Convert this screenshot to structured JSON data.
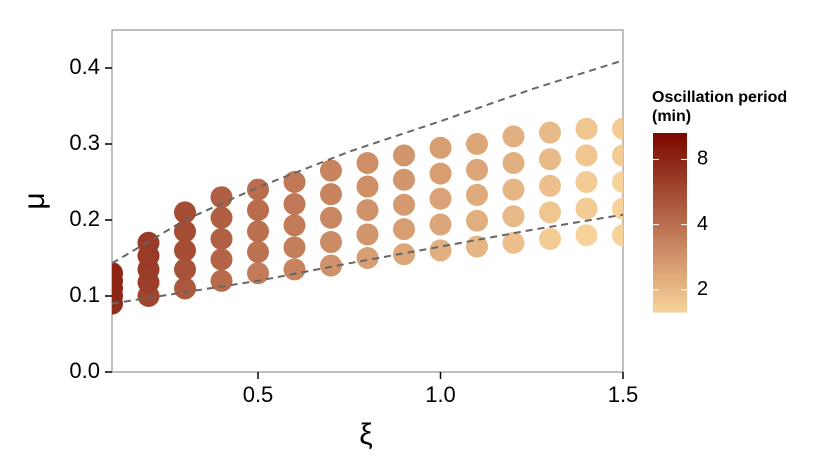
{
  "chart_data": {
    "type": "scatter",
    "x_label": "ξ",
    "y_label": "μ",
    "legend_title": "Oscillation period (min)",
    "xlim": [
      0.1,
      1.5
    ],
    "xticks": [
      0.5,
      {
        "value": 1,
        "label": "1.0"
      },
      1.5
    ],
    "ylim": [
      0,
      0.45
    ],
    "yticks": [
      {
        "value": 0,
        "label": "0.0"
      },
      0.1,
      0.2,
      0.3,
      0.4
    ],
    "color_lim": [
      1.58,
      10.6
    ],
    "color_log": true,
    "colors": [
      "#f8d39b",
      "#7a0800"
    ],
    "color_ticks": [
      2,
      4,
      8
    ],
    "x": [
      0.1,
      0.1,
      0.1,
      0.1,
      0.1,
      0.2,
      0.2,
      0.2,
      0.2,
      0.2,
      0.3,
      0.3,
      0.3,
      0.3,
      0.3,
      0.4,
      0.4,
      0.4,
      0.4,
      0.4,
      0.5,
      0.5,
      0.5,
      0.5,
      0.5,
      0.6,
      0.6,
      0.6,
      0.6,
      0.6,
      0.7,
      0.7,
      0.7,
      0.7,
      0.7,
      0.8,
      0.8,
      0.8,
      0.8,
      0.8,
      0.9,
      0.9,
      0.9,
      0.9,
      0.9,
      1.0,
      1.0,
      1.0,
      1.0,
      1.0,
      1.1,
      1.1,
      1.1,
      1.1,
      1.1,
      1.2,
      1.2,
      1.2,
      1.2,
      1.2,
      1.3,
      1.3,
      1.3,
      1.3,
      1.3,
      1.4,
      1.4,
      1.4,
      1.4,
      1.4,
      1.5,
      1.5,
      1.5,
      1.5,
      1.5
    ],
    "y": [
      0.09,
      0.1,
      0.11,
      0.12,
      0.13,
      0.1,
      0.118,
      0.135,
      0.153,
      0.17,
      0.11,
      0.135,
      0.16,
      0.185,
      0.21,
      0.12,
      0.148,
      0.175,
      0.203,
      0.23,
      0.13,
      0.158,
      0.185,
      0.213,
      0.24,
      0.135,
      0.164,
      0.193,
      0.221,
      0.25,
      0.14,
      0.171,
      0.203,
      0.234,
      0.265,
      0.15,
      0.181,
      0.213,
      0.244,
      0.275,
      0.155,
      0.188,
      0.22,
      0.253,
      0.285,
      0.16,
      0.194,
      0.228,
      0.261,
      0.295,
      0.165,
      0.199,
      0.233,
      0.266,
      0.3,
      0.17,
      0.205,
      0.24,
      0.275,
      0.31,
      0.175,
      0.21,
      0.245,
      0.28,
      0.315,
      0.18,
      0.215,
      0.25,
      0.285,
      0.32,
      0.18,
      0.215,
      0.25,
      0.285,
      0.32
    ],
    "period": [
      7.5,
      7.8,
      8,
      8,
      8,
      6,
      6.3,
      6.5,
      6.6,
      6.6,
      5,
      5.3,
      5.5,
      5.6,
      5.6,
      4.2,
      4.5,
      4.6,
      4.7,
      4.7,
      3.6,
      3.9,
      4,
      4.1,
      4.1,
      3.3,
      3.5,
      3.6,
      3.7,
      3.7,
      2.9,
      3.1,
      3.2,
      3.3,
      3.3,
      2.6,
      2.8,
      2.9,
      3,
      3,
      2.4,
      2.6,
      2.7,
      2.8,
      2.8,
      2.2,
      2.4,
      2.5,
      2.6,
      2.6,
      2.1,
      2.2,
      2.3,
      2.4,
      2.4,
      1.9,
      2,
      2.1,
      2.2,
      2.2,
      1.7,
      1.8,
      1.9,
      2,
      2,
      1.6,
      1.7,
      1.7,
      1.8,
      1.8,
      1.6,
      1.6,
      1.6,
      1.7,
      1.7
    ],
    "lines": [
      {
        "x": [
          0.1,
          0.3,
          0.5,
          0.75,
          1.0,
          1.25,
          1.5
        ],
        "values": [
          0.143,
          0.2,
          0.243,
          0.29,
          0.33,
          0.372,
          0.41
        ],
        "color": "#666666"
      },
      {
        "x": [
          0.1,
          0.3,
          0.5,
          0.75,
          1.0,
          1.25,
          1.5
        ],
        "values": [
          0.09,
          0.105,
          0.12,
          0.143,
          0.165,
          0.187,
          0.207
        ],
        "color": "#666666"
      }
    ]
  }
}
